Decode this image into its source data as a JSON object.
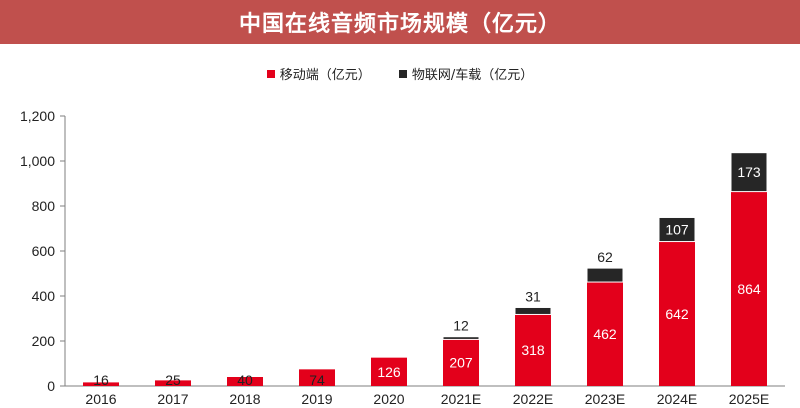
{
  "title": "中国在线音频市场规模（亿元）",
  "legend": [
    {
      "name": "移动端（亿元）",
      "color": "#e3001b"
    },
    {
      "name": "物联网/车载（亿元）",
      "color": "#262626"
    }
  ],
  "chart_data": {
    "type": "bar",
    "stacked": true,
    "title": "中国在线音频市场规模（亿元）",
    "categories": [
      "2016",
      "2017",
      "2018",
      "2019",
      "2020",
      "2021E",
      "2022E",
      "2023E",
      "2024E",
      "2025E"
    ],
    "series": [
      {
        "name": "移动端（亿元）",
        "color": "#e3001b",
        "values": [
          16,
          25,
          40,
          74,
          126,
          207,
          318,
          462,
          642,
          864
        ]
      },
      {
        "name": "物联网/车载（亿元）",
        "color": "#262626",
        "values": [
          null,
          null,
          null,
          null,
          null,
          12,
          31,
          62,
          107,
          173
        ]
      }
    ],
    "yticks": [
      "0",
      "200",
      "400",
      "600",
      "800",
      "1,000",
      "1,200"
    ],
    "ylim": [
      0,
      1200
    ],
    "legend_position": "top-center",
    "grid": false
  }
}
